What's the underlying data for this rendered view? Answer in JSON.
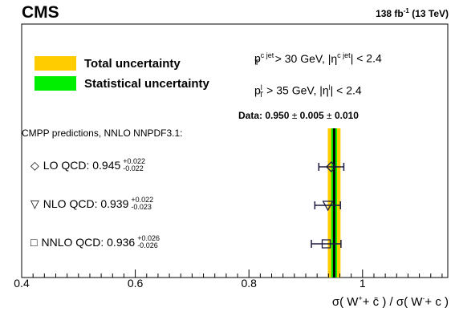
{
  "header": {
    "experiment": "CMS",
    "lumi": "138 fb",
    "lumi_exp": "-1",
    "energy": " (13 TeV)"
  },
  "legend": {
    "total": "Total uncertainty",
    "stat": "Statistical uncertainty",
    "total_color": "#ffcc00",
    "stat_color": "#00ee00"
  },
  "cuts": {
    "jet_pt_p": "p",
    "jet_pt_sup": "c jet",
    "jet_pt_sub": "T",
    "jet_pt_rest": " > 30 GeV, |η",
    "jet_eta_sup": "c jet",
    "jet_eta_rest": "| < 2.4",
    "lep_pt_p": "p",
    "lep_pt_sup": "l",
    "lep_pt_sub": "T",
    "lep_pt_rest": " > 35 GeV, |η",
    "lep_eta_sup": "l",
    "lep_eta_rest": "| < 2.4"
  },
  "data_label": {
    "prefix": "Data: ",
    "value": "0.950",
    "pm": " ± ",
    "stat": "0.005",
    "syst": "0.010"
  },
  "predictions_title": "CMPP predictions, NNLO NNPDF3.1:",
  "predictions": [
    {
      "symbol": "◇",
      "name": "LO QCD: 0.945",
      "up": "+0.022",
      "down": "-0.022"
    },
    {
      "symbol": "▽",
      "name": "NLO QCD: 0.939",
      "up": "+0.022",
      "down": "-0.023"
    },
    {
      "symbol": "□",
      "name": "NNLO QCD: 0.936",
      "up": "+0.026",
      "down": "-0.026"
    }
  ],
  "xlabel": {
    "a": "σ( W",
    "a_sup": "+",
    "b": "+ c̄ ) / σ( W",
    "b_sup": "-",
    "c": "+ c )"
  },
  "chart_data": {
    "type": "scatter",
    "xlim": [
      0.4,
      1.15
    ],
    "xticks": [
      0.4,
      0.6,
      0.8,
      1.0
    ],
    "xtick_labels": [
      "0.4",
      "0.6",
      "0.8",
      "1"
    ],
    "measurement": {
      "value": 0.95,
      "stat": 0.005,
      "syst": 0.01,
      "total": 0.0112
    },
    "points": [
      {
        "label": "LO QCD",
        "marker": "diamond",
        "value": 0.945,
        "err_up": 0.022,
        "err_down": 0.022
      },
      {
        "label": "NLO QCD",
        "marker": "triangle-down",
        "value": 0.939,
        "err_up": 0.022,
        "err_down": 0.023
      },
      {
        "label": "NNLO QCD",
        "marker": "square",
        "value": 0.936,
        "err_up": 0.026,
        "err_down": 0.026
      }
    ],
    "grid": false,
    "legend_position": "top-left"
  }
}
